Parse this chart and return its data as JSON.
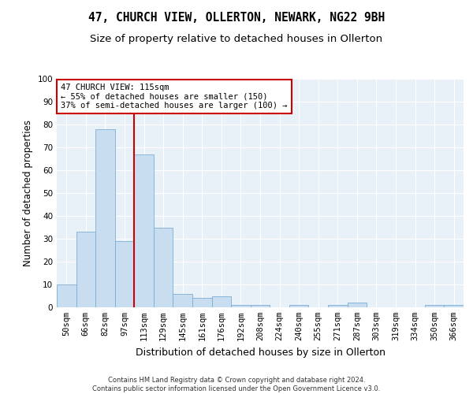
{
  "title": "47, CHURCH VIEW, OLLERTON, NEWARK, NG22 9BH",
  "subtitle": "Size of property relative to detached houses in Ollerton",
  "xlabel": "Distribution of detached houses by size in Ollerton",
  "ylabel": "Number of detached properties",
  "bar_color": "#c9ddf0",
  "bar_edge_color": "#7bafd4",
  "background_color": "#e8f0f8",
  "plot_bg_color": "#e8f0f8",
  "grid_color": "#ffffff",
  "categories": [
    "50sqm",
    "66sqm",
    "82sqm",
    "97sqm",
    "113sqm",
    "129sqm",
    "145sqm",
    "161sqm",
    "176sqm",
    "192sqm",
    "208sqm",
    "224sqm",
    "240sqm",
    "255sqm",
    "271sqm",
    "287sqm",
    "303sqm",
    "319sqm",
    "334sqm",
    "350sqm",
    "366sqm"
  ],
  "values": [
    10,
    33,
    78,
    29,
    67,
    35,
    6,
    4,
    5,
    1,
    1,
    0,
    1,
    0,
    1,
    2,
    0,
    0,
    0,
    1,
    1
  ],
  "ylim": [
    0,
    100
  ],
  "yticks": [
    0,
    10,
    20,
    30,
    40,
    50,
    60,
    70,
    80,
    90,
    100
  ],
  "property_line_x": 3.5,
  "property_line_color": "#cc0000",
  "annotation_text": "47 CHURCH VIEW: 115sqm\n← 55% of detached houses are smaller (150)\n37% of semi-detached houses are larger (100) →",
  "annotation_box_facecolor": "#ffffff",
  "annotation_box_edgecolor": "#cc0000",
  "footer_line1": "Contains HM Land Registry data © Crown copyright and database right 2024.",
  "footer_line2": "Contains public sector information licensed under the Open Government Licence v3.0.",
  "title_fontsize": 10.5,
  "subtitle_fontsize": 9.5,
  "tick_fontsize": 7.5,
  "ylabel_fontsize": 8.5,
  "xlabel_fontsize": 9,
  "annotation_fontsize": 7.5,
  "footer_fontsize": 6
}
